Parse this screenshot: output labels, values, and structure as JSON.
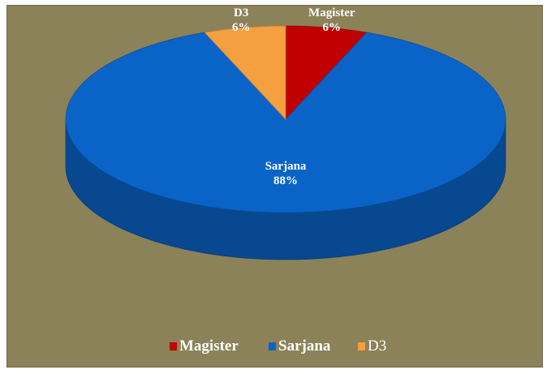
{
  "chart_data": {
    "type": "pie",
    "title": "",
    "labels": [
      "Magister",
      "Sarjana",
      "D3"
    ],
    "values": [
      6,
      88,
      6
    ],
    "value_labels": [
      "6%",
      "88%",
      "6%"
    ],
    "colors": [
      "#c00000",
      "#0a64c8",
      "#f5a040"
    ],
    "label_colors": [
      "#ffffff",
      "#ffffff",
      "#ffffff"
    ],
    "value_label_colors": [
      "#ffffff",
      "#ffffff",
      "#ffffff"
    ],
    "style": "3d",
    "legend": {
      "position": "bottom",
      "entries": [
        "Magister",
        "Sarjana",
        "D3"
      ]
    }
  },
  "background_color": "#8b8259"
}
